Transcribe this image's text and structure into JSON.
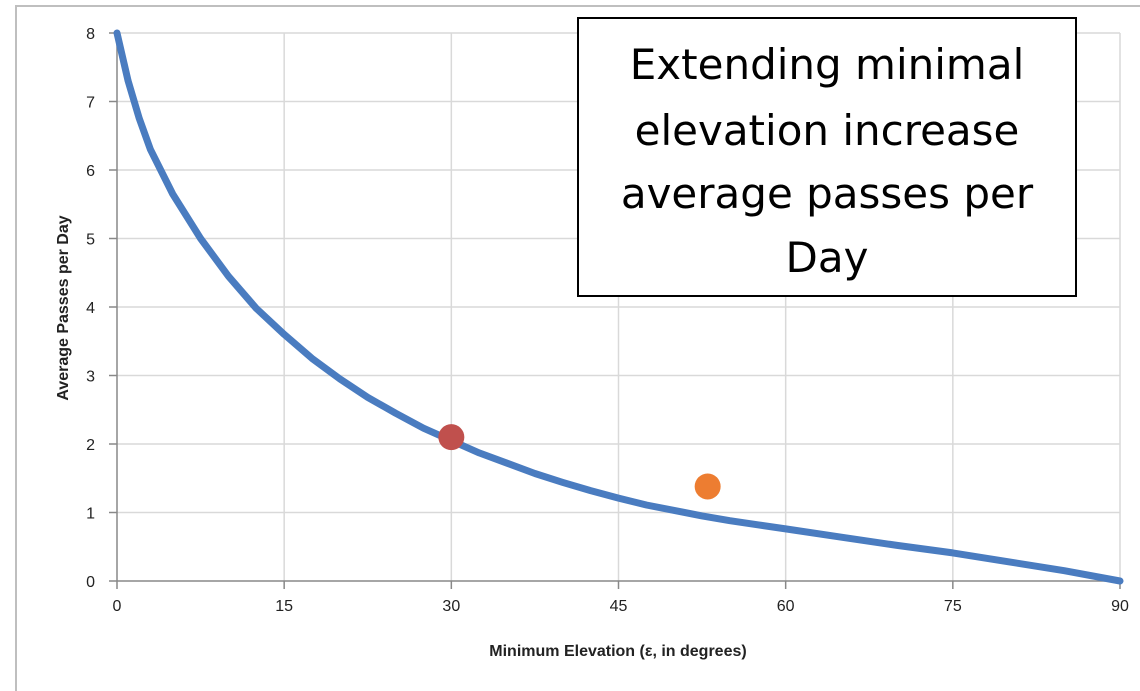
{
  "chart_data": {
    "type": "line",
    "xlabel": "Minimum Elevation (ε, in degrees)",
    "ylabel": "Average Passes per Day",
    "xlim": [
      0,
      90
    ],
    "ylim": [
      0,
      8
    ],
    "x_ticks": [
      0,
      15,
      30,
      45,
      60,
      75,
      90
    ],
    "y_ticks": [
      0,
      1,
      2,
      3,
      4,
      5,
      6,
      7,
      8
    ],
    "grid": true,
    "series": [
      {
        "color": "#4a7cc0",
        "points": [
          [
            0,
            8.0
          ],
          [
            1,
            7.3
          ],
          [
            2,
            6.75
          ],
          [
            3,
            6.3
          ],
          [
            5,
            5.65
          ],
          [
            7.5,
            5.0
          ],
          [
            10,
            4.45
          ],
          [
            12.5,
            3.98
          ],
          [
            15,
            3.6
          ],
          [
            17.5,
            3.25
          ],
          [
            20,
            2.95
          ],
          [
            22.5,
            2.68
          ],
          [
            25,
            2.45
          ],
          [
            27.5,
            2.23
          ],
          [
            30,
            2.05
          ],
          [
            32.5,
            1.87
          ],
          [
            35,
            1.72
          ],
          [
            37.5,
            1.57
          ],
          [
            40,
            1.44
          ],
          [
            42.5,
            1.32
          ],
          [
            45,
            1.21
          ],
          [
            47.5,
            1.11
          ],
          [
            50,
            1.03
          ],
          [
            52.5,
            0.95
          ],
          [
            55,
            0.88
          ],
          [
            57.5,
            0.82
          ],
          [
            60,
            0.76
          ],
          [
            65,
            0.64
          ],
          [
            70,
            0.52
          ],
          [
            75,
            0.41
          ],
          [
            80,
            0.28
          ],
          [
            85,
            0.15
          ],
          [
            90,
            0.0
          ]
        ]
      }
    ],
    "markers": [
      {
        "x": 30,
        "y": 2.1,
        "color": "#c0504d"
      },
      {
        "x": 53,
        "y": 1.38,
        "color": "#ed7d31"
      }
    ],
    "annotation": {
      "lines": [
        "Extending minimal",
        "elevation increase",
        "average passes per",
        "Day"
      ]
    }
  },
  "colors": {
    "grid": "#d9d9d9",
    "axis": "#888888",
    "frame": "#bfbfbf"
  }
}
